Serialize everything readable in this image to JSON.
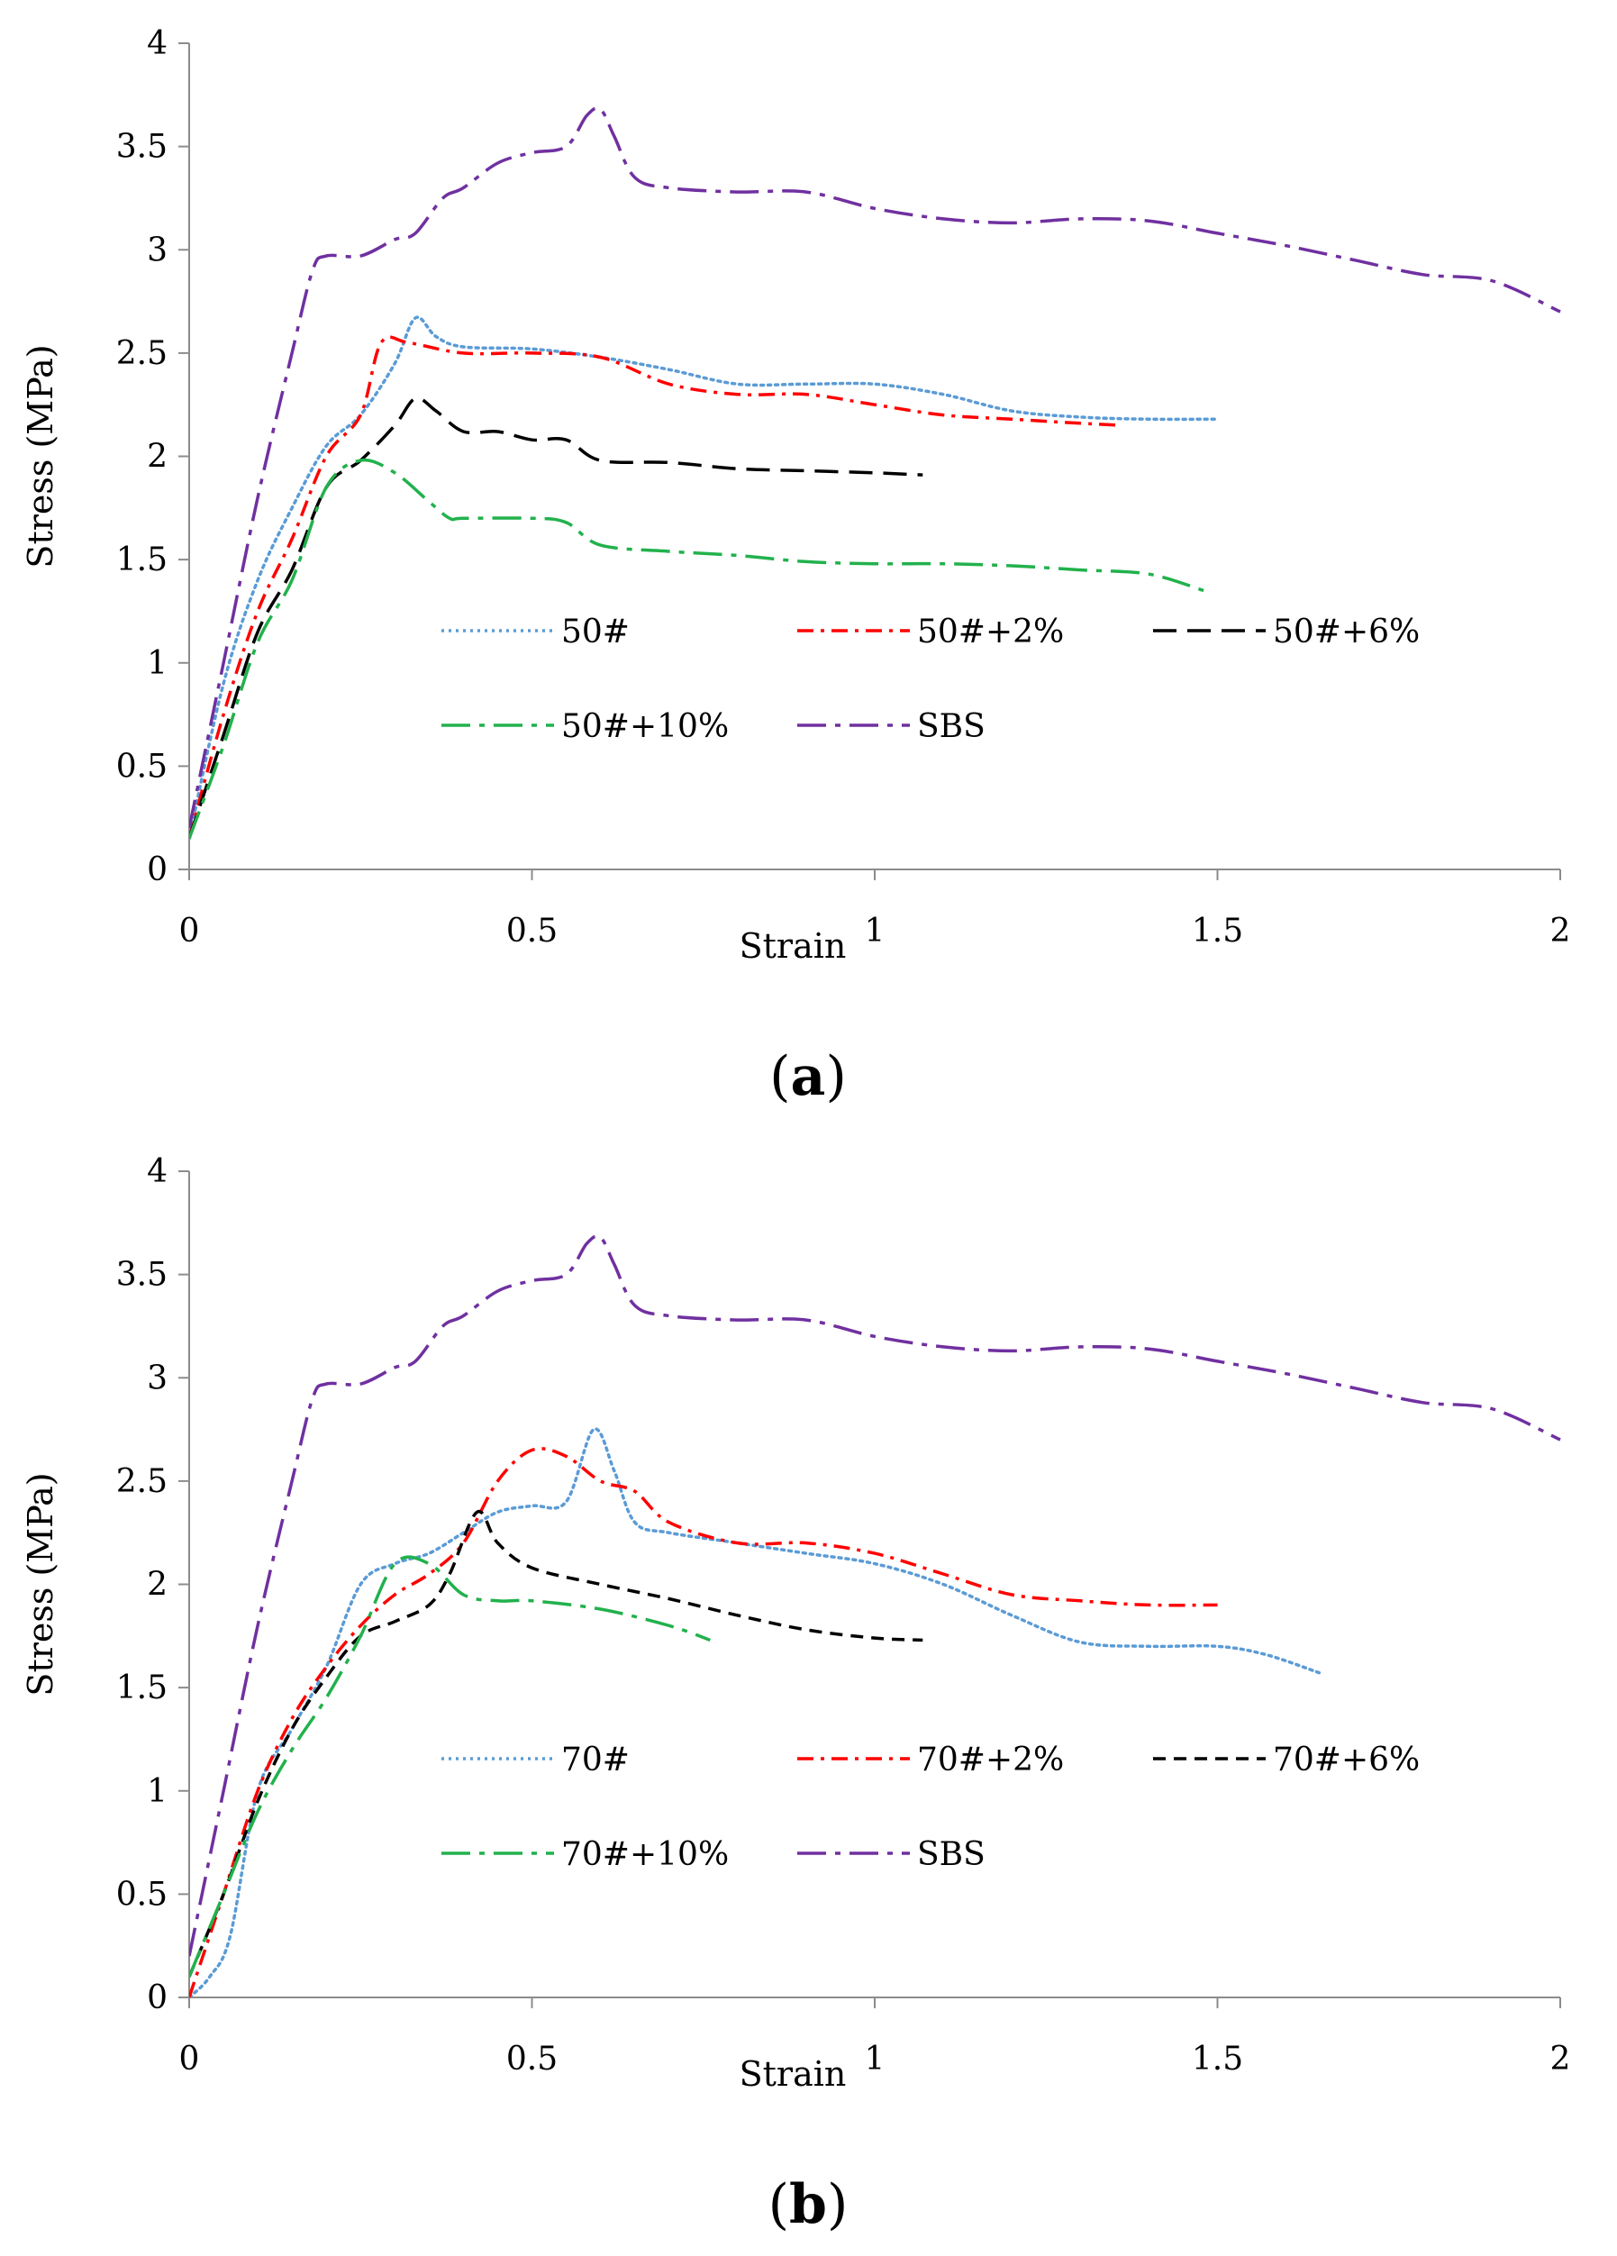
{
  "chart_data": [
    {
      "type": "line",
      "panel": "a",
      "xlabel": "Strain",
      "ylabel": "Stress (MPa)",
      "xlim": [
        0,
        2
      ],
      "ylim": [
        0,
        4
      ],
      "xticks": [
        "0",
        "0.5",
        "1",
        "1.5",
        "2"
      ],
      "yticks": [
        "0",
        "0.5",
        "1",
        "1.5",
        "2",
        "2.5",
        "3",
        "3.5",
        "4"
      ],
      "series": [
        {
          "name": "50#",
          "color": "#5b9bd5",
          "dash": "dotted",
          "x": [
            0,
            0.05,
            0.1,
            0.15,
            0.2,
            0.25,
            0.3,
            0.33,
            0.36,
            0.4,
            0.5,
            0.6,
            0.7,
            0.8,
            0.9,
            1.0,
            1.1,
            1.2,
            1.3,
            1.4,
            1.5
          ],
          "y": [
            0.15,
            0.9,
            1.4,
            1.75,
            2.05,
            2.2,
            2.45,
            2.67,
            2.58,
            2.53,
            2.52,
            2.48,
            2.42,
            2.35,
            2.35,
            2.35,
            2.3,
            2.22,
            2.19,
            2.18,
            2.18
          ]
        },
        {
          "name": "50#+2%",
          "color": "#ff0000",
          "dash": "dashdot",
          "x": [
            0,
            0.05,
            0.1,
            0.15,
            0.2,
            0.25,
            0.28,
            0.32,
            0.4,
            0.5,
            0.6,
            0.7,
            0.8,
            0.9,
            1.0,
            1.1,
            1.2,
            1.3,
            1.36
          ],
          "y": [
            0.15,
            0.75,
            1.25,
            1.6,
            2.0,
            2.2,
            2.55,
            2.55,
            2.5,
            2.5,
            2.48,
            2.35,
            2.3,
            2.3,
            2.25,
            2.2,
            2.18,
            2.16,
            2.15
          ]
        },
        {
          "name": "50#+6%",
          "color": "#000000",
          "dash": "dashed",
          "x": [
            0,
            0.05,
            0.1,
            0.15,
            0.2,
            0.25,
            0.3,
            0.33,
            0.36,
            0.4,
            0.45,
            0.5,
            0.55,
            0.6,
            0.7,
            0.8,
            0.9,
            1.0,
            1.07
          ],
          "y": [
            0.15,
            0.65,
            1.15,
            1.45,
            1.85,
            1.98,
            2.15,
            2.28,
            2.22,
            2.12,
            2.12,
            2.08,
            2.08,
            1.98,
            1.97,
            1.94,
            1.93,
            1.92,
            1.91
          ]
        },
        {
          "name": "50#+10%",
          "color": "#22b14c",
          "dash": "longdashdot",
          "x": [
            0,
            0.05,
            0.1,
            0.15,
            0.2,
            0.25,
            0.3,
            0.35,
            0.38,
            0.4,
            0.5,
            0.55,
            0.6,
            0.7,
            0.8,
            0.9,
            1.0,
            1.1,
            1.2,
            1.3,
            1.4,
            1.48
          ],
          "y": [
            0.15,
            0.6,
            1.1,
            1.4,
            1.85,
            1.98,
            1.92,
            1.78,
            1.7,
            1.7,
            1.7,
            1.68,
            1.57,
            1.54,
            1.52,
            1.49,
            1.48,
            1.48,
            1.47,
            1.45,
            1.43,
            1.35
          ]
        },
        {
          "name": "SBS",
          "color": "#7030a0",
          "dash": "longdashdot",
          "x": [
            0,
            0.05,
            0.1,
            0.15,
            0.18,
            0.2,
            0.25,
            0.3,
            0.33,
            0.37,
            0.4,
            0.45,
            0.5,
            0.55,
            0.58,
            0.6,
            0.62,
            0.65,
            0.7,
            0.8,
            0.9,
            1.0,
            1.1,
            1.2,
            1.3,
            1.4,
            1.5,
            1.6,
            1.7,
            1.8,
            1.9,
            2.0
          ],
          "y": [
            0.2,
            1.0,
            1.8,
            2.5,
            2.9,
            2.97,
            2.97,
            3.05,
            3.08,
            3.25,
            3.3,
            3.42,
            3.47,
            3.5,
            3.65,
            3.68,
            3.55,
            3.35,
            3.3,
            3.28,
            3.28,
            3.2,
            3.15,
            3.13,
            3.15,
            3.14,
            3.08,
            3.02,
            2.95,
            2.88,
            2.85,
            2.7
          ]
        }
      ]
    },
    {
      "type": "line",
      "panel": "b",
      "xlabel": "Strain",
      "ylabel": "Stress (MPa)",
      "xlim": [
        0,
        2
      ],
      "ylim": [
        0,
        4
      ],
      "xticks": [
        "0",
        "0.5",
        "1",
        "1.5",
        "2"
      ],
      "yticks": [
        "0",
        "0.5",
        "1",
        "1.5",
        "2",
        "2.5",
        "3",
        "3.5",
        "4"
      ],
      "series": [
        {
          "name": "70#",
          "color": "#5b9bd5",
          "dash": "dotted",
          "x": [
            0,
            0.03,
            0.06,
            0.1,
            0.15,
            0.2,
            0.25,
            0.3,
            0.35,
            0.4,
            0.45,
            0.5,
            0.55,
            0.59,
            0.62,
            0.65,
            0.7,
            0.8,
            0.9,
            1.0,
            1.1,
            1.2,
            1.3,
            1.4,
            1.5,
            1.57,
            1.65
          ],
          "y": [
            0,
            0.1,
            0.3,
            1.0,
            1.3,
            1.6,
            2.0,
            2.1,
            2.15,
            2.25,
            2.35,
            2.38,
            2.4,
            2.75,
            2.55,
            2.3,
            2.25,
            2.2,
            2.15,
            2.1,
            2.0,
            1.85,
            1.72,
            1.7,
            1.7,
            1.66,
            1.57
          ]
        },
        {
          "name": "70#+2%",
          "color": "#ff0000",
          "dash": "dashdot",
          "x": [
            0,
            0.05,
            0.1,
            0.15,
            0.2,
            0.25,
            0.3,
            0.35,
            0.4,
            0.45,
            0.5,
            0.55,
            0.6,
            0.65,
            0.7,
            0.8,
            0.9,
            1.0,
            1.1,
            1.2,
            1.3,
            1.4,
            1.5
          ],
          "y": [
            0,
            0.5,
            1.0,
            1.35,
            1.6,
            1.8,
            1.95,
            2.05,
            2.2,
            2.5,
            2.65,
            2.62,
            2.5,
            2.45,
            2.3,
            2.2,
            2.2,
            2.15,
            2.05,
            1.95,
            1.92,
            1.9,
            1.9
          ]
        },
        {
          "name": "70#+6%",
          "color": "#000000",
          "dash": "shortdash",
          "x": [
            0,
            0.05,
            0.1,
            0.15,
            0.2,
            0.25,
            0.3,
            0.35,
            0.38,
            0.42,
            0.45,
            0.5,
            0.6,
            0.7,
            0.8,
            0.9,
            1.0,
            1.07
          ],
          "y": [
            0.1,
            0.5,
            0.95,
            1.3,
            1.55,
            1.75,
            1.82,
            1.9,
            2.05,
            2.35,
            2.2,
            2.08,
            2.0,
            1.93,
            1.85,
            1.78,
            1.74,
            1.73
          ]
        },
        {
          "name": "70#+10%",
          "color": "#22b14c",
          "dash": "longdashdot",
          "x": [
            0,
            0.05,
            0.1,
            0.15,
            0.2,
            0.25,
            0.3,
            0.35,
            0.4,
            0.45,
            0.5,
            0.6,
            0.7,
            0.76
          ],
          "y": [
            0.1,
            0.5,
            0.9,
            1.2,
            1.45,
            1.75,
            2.1,
            2.1,
            1.95,
            1.92,
            1.92,
            1.88,
            1.8,
            1.73
          ]
        },
        {
          "name": "SBS",
          "color": "#7030a0",
          "dash": "longdashdot",
          "x": [
            0,
            0.05,
            0.1,
            0.15,
            0.18,
            0.2,
            0.25,
            0.3,
            0.33,
            0.37,
            0.4,
            0.45,
            0.5,
            0.55,
            0.58,
            0.6,
            0.62,
            0.65,
            0.7,
            0.8,
            0.9,
            1.0,
            1.1,
            1.2,
            1.3,
            1.4,
            1.5,
            1.6,
            1.7,
            1.8,
            1.9,
            2.0
          ],
          "y": [
            0.2,
            1.0,
            1.8,
            2.5,
            2.9,
            2.97,
            2.97,
            3.05,
            3.08,
            3.25,
            3.3,
            3.42,
            3.47,
            3.5,
            3.65,
            3.68,
            3.55,
            3.35,
            3.3,
            3.28,
            3.28,
            3.2,
            3.15,
            3.13,
            3.15,
            3.14,
            3.08,
            3.02,
            2.95,
            2.88,
            2.85,
            2.7
          ]
        }
      ]
    }
  ],
  "labels": {
    "panel_a": "a",
    "panel_b": "b"
  }
}
